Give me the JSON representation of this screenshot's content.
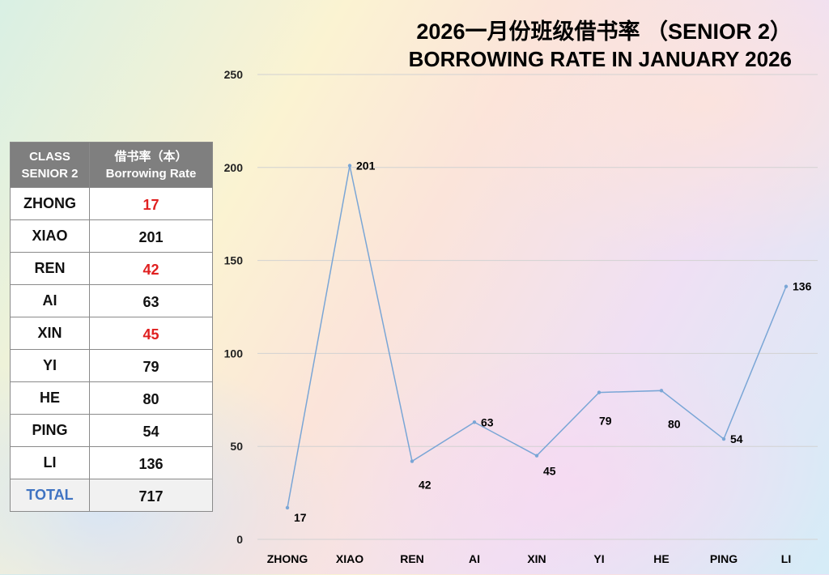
{
  "title_line1": "2026一月份班级借书率 （SENIOR 2）",
  "title_line2": "BORROWING RATE IN JANUARY 2026",
  "table": {
    "header_class": [
      "CLASS",
      "SENIOR 2"
    ],
    "header_rate": [
      "借书率（本）",
      "Borrowing Rate"
    ],
    "rows": [
      {
        "name": "ZHONG",
        "value": "17",
        "low": true
      },
      {
        "name": "XIAO",
        "value": "201",
        "low": false
      },
      {
        "name": "REN",
        "value": "42",
        "low": true
      },
      {
        "name": "AI",
        "value": "63",
        "low": false
      },
      {
        "name": "XIN",
        "value": "45",
        "low": true
      },
      {
        "name": "YI",
        "value": "79",
        "low": false
      },
      {
        "name": "HE",
        "value": "80",
        "low": false
      },
      {
        "name": "PING",
        "value": "54",
        "low": false
      },
      {
        "name": "LI",
        "value": "136",
        "low": false
      }
    ],
    "total_label": "TOTAL",
    "total_value": "717"
  },
  "colors": {
    "line": "#7aa6d6",
    "low_value": "#e02020",
    "total_label": "#3f73c2",
    "header_bg": "#7f7f7f"
  },
  "chart_data": {
    "type": "line",
    "categories": [
      "ZHONG",
      "XIAO",
      "REN",
      "AI",
      "XIN",
      "YI",
      "HE",
      "PING",
      "LI"
    ],
    "values": [
      17,
      201,
      42,
      63,
      45,
      79,
      80,
      54,
      136
    ],
    "yticks": [
      0,
      50,
      100,
      150,
      200,
      250
    ],
    "ylim": [
      0,
      250
    ],
    "grid": true,
    "data_labels": true,
    "legend": "none"
  }
}
